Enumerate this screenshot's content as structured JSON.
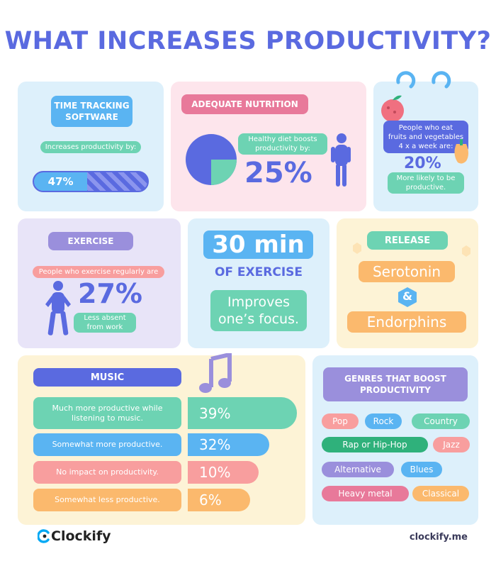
{
  "title": "WHAT INCREASES PRODUCTIVITY?",
  "time_tracking": {
    "heading": "TIME TRACKING\nSOFTWARE",
    "caption": "Increases productivity by:",
    "value_label": "47%",
    "value": 47
  },
  "nutrition": {
    "heading": "ADEQUATE NUTRITION",
    "caption": "Healthy diet boosts\nproductivity by:",
    "value_label": "25%",
    "value": 25
  },
  "fruits": {
    "caption": "People who eat\nfruits and vegetables\n4 x a week are:",
    "value_label": "20%",
    "sub": "More likely to be\nproductive."
  },
  "exercise": {
    "heading": "EXERCISE",
    "caption": "People who exercise regularly are",
    "value_label": "27%",
    "sub": "Less absent\nfrom work"
  },
  "thirty": {
    "big": "30 min",
    "sub": "OF EXERCISE",
    "note": "Improves\none’s focus."
  },
  "release": {
    "heading": "RELEASE",
    "item1": "Serotonin",
    "amp": "&",
    "item2": "Endorphins"
  },
  "music": {
    "heading": "MUSIC",
    "rows": [
      {
        "label": "Much more productive while\nlistening to music.",
        "value": "39%",
        "color": "#6dd3b3"
      },
      {
        "label": "Somewhat more productive.",
        "value": "32%",
        "color": "#5ab4f2"
      },
      {
        "label": "No impact on productivity.",
        "value": "10%",
        "color": "#f89e9e"
      },
      {
        "label": "Somewhat less productive.",
        "value": "6%",
        "color": "#fbb96d"
      }
    ]
  },
  "genres": {
    "heading": "GENRES THAT BOOST\nPRODUCTIVITY",
    "tags": [
      {
        "label": "Pop",
        "color": "#f89e9e"
      },
      {
        "label": "Rock",
        "color": "#5ab4f2"
      },
      {
        "label": "Country",
        "color": "#6dd3b3"
      },
      {
        "label": "Rap or Hip-Hop",
        "color": "#2fb17b"
      },
      {
        "label": "Jazz",
        "color": "#f89e9e"
      },
      {
        "label": "Alternative",
        "color": "#9a8fdc"
      },
      {
        "label": "Blues",
        "color": "#5ab4f2"
      },
      {
        "label": "Heavy metal",
        "color": "#e8799a"
      },
      {
        "label": "Classical",
        "color": "#fbb96d"
      }
    ]
  },
  "footer": {
    "logo": "Clockify",
    "url": "clockify.me"
  },
  "colors": {
    "title": "#5a6ae0",
    "card_blue": "#ddf0fb",
    "card_pink": "#fde5ec",
    "card_purple": "#e8e4f8",
    "card_yellow": "#fdf3d6"
  }
}
